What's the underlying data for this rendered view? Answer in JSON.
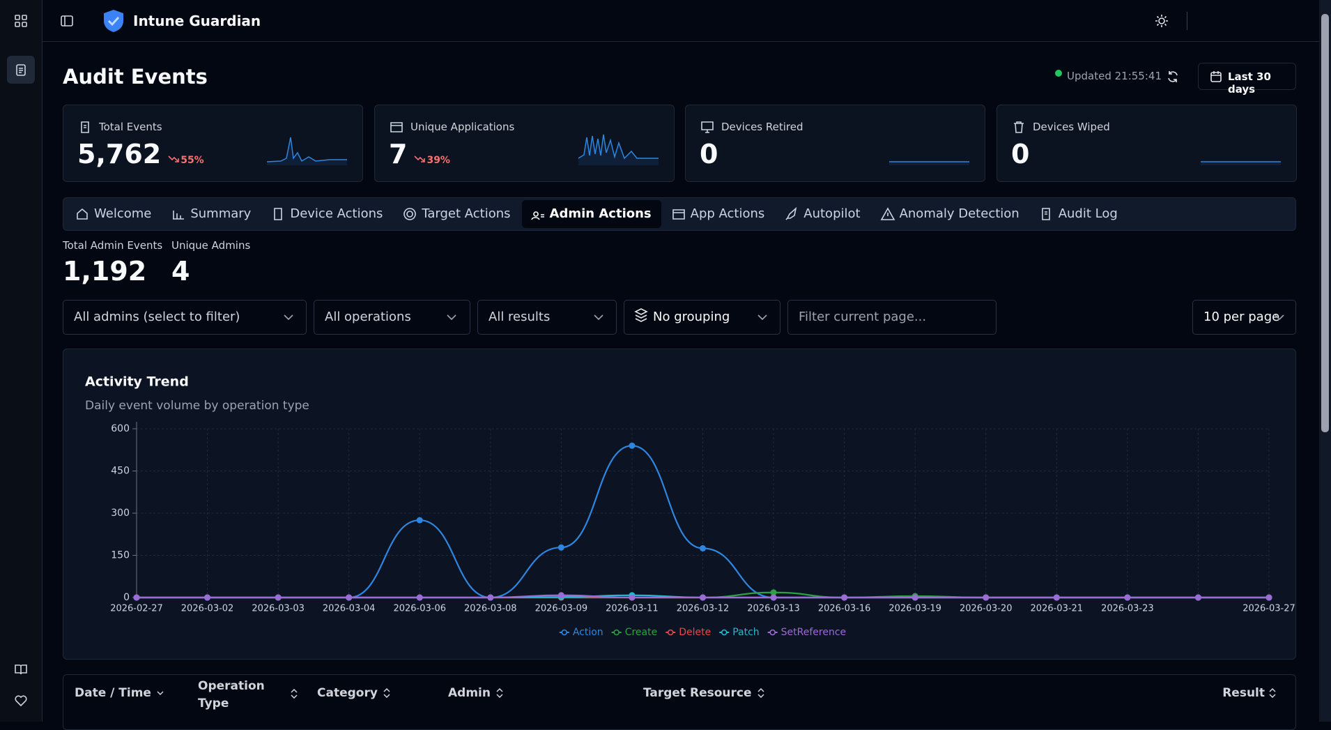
{
  "app": {
    "title": "Intune Guardian"
  },
  "page": {
    "title": "Audit Events",
    "updated": "Updated 21:55:41",
    "range": "Last 30 days"
  },
  "stats": [
    {
      "label": "Total Events",
      "value": "5,762",
      "change": "55%"
    },
    {
      "label": "Unique Applications",
      "value": "7",
      "change": "39%"
    },
    {
      "label": "Devices Retired",
      "value": "0"
    },
    {
      "label": "Devices Wiped",
      "value": "0"
    }
  ],
  "tabs": [
    "Welcome",
    "Summary",
    "Device Actions",
    "Target Actions",
    "Admin Actions",
    "App Actions",
    "Autopilot",
    "Anomaly Detection",
    "Audit Log"
  ],
  "active_tab": 4,
  "summary": [
    {
      "label": "Total Admin Events",
      "value": "1,192"
    },
    {
      "label": "Unique Admins",
      "value": "4"
    }
  ],
  "filters": {
    "admins": "All admins (select to filter)",
    "operations": "All operations",
    "results": "All results",
    "grouping": "No grouping",
    "search": "Filter current page...",
    "page_size": "10 per page"
  },
  "chart_data": {
    "type": "line",
    "title": "Activity Trend",
    "subtitle": "Daily event volume by operation type",
    "categories": [
      "2026-02-27",
      "2026-03-02",
      "2026-03-03",
      "2026-03-04",
      "2026-03-06",
      "2026-03-08",
      "2026-03-09",
      "2026-03-11",
      "2026-03-12",
      "2026-03-13",
      "2026-03-16",
      "2026-03-19",
      "2026-03-20",
      "2026-03-21",
      "2026-03-23",
      null,
      "2026-03-27"
    ],
    "series": [
      {
        "name": "Action",
        "color": "#2f86e0",
        "values": [
          0,
          0,
          0,
          0,
          275,
          0,
          178,
          540,
          175,
          0,
          0,
          0,
          0,
          0,
          0,
          0,
          0
        ]
      },
      {
        "name": "Create",
        "color": "#2ea043",
        "values": [
          0,
          0,
          0,
          0,
          0,
          0,
          0,
          0,
          0,
          18,
          0,
          5,
          0,
          0,
          0,
          0,
          0
        ]
      },
      {
        "name": "Delete",
        "color": "#e5484d",
        "values": [
          0,
          0,
          0,
          0,
          0,
          0,
          0,
          0,
          0,
          0,
          0,
          0,
          0,
          0,
          0,
          0,
          0
        ]
      },
      {
        "name": "Patch",
        "color": "#22b8cf",
        "values": [
          0,
          0,
          0,
          0,
          0,
          0,
          2,
          8,
          0,
          0,
          0,
          0,
          0,
          0,
          0,
          0,
          0
        ]
      },
      {
        "name": "SetReference",
        "color": "#9b6bd6",
        "values": [
          0,
          0,
          0,
          0,
          0,
          0,
          8,
          0,
          0,
          0,
          0,
          0,
          0,
          0,
          0,
          0,
          0
        ]
      }
    ],
    "ylim": [
      0,
      600
    ],
    "yticks": [
      0,
      150,
      300,
      450,
      600
    ],
    "grid": true
  },
  "table": {
    "columns": [
      "Date / Time",
      "Operation Type",
      "Category",
      "Admin",
      "Target Resource",
      "Result"
    ]
  }
}
